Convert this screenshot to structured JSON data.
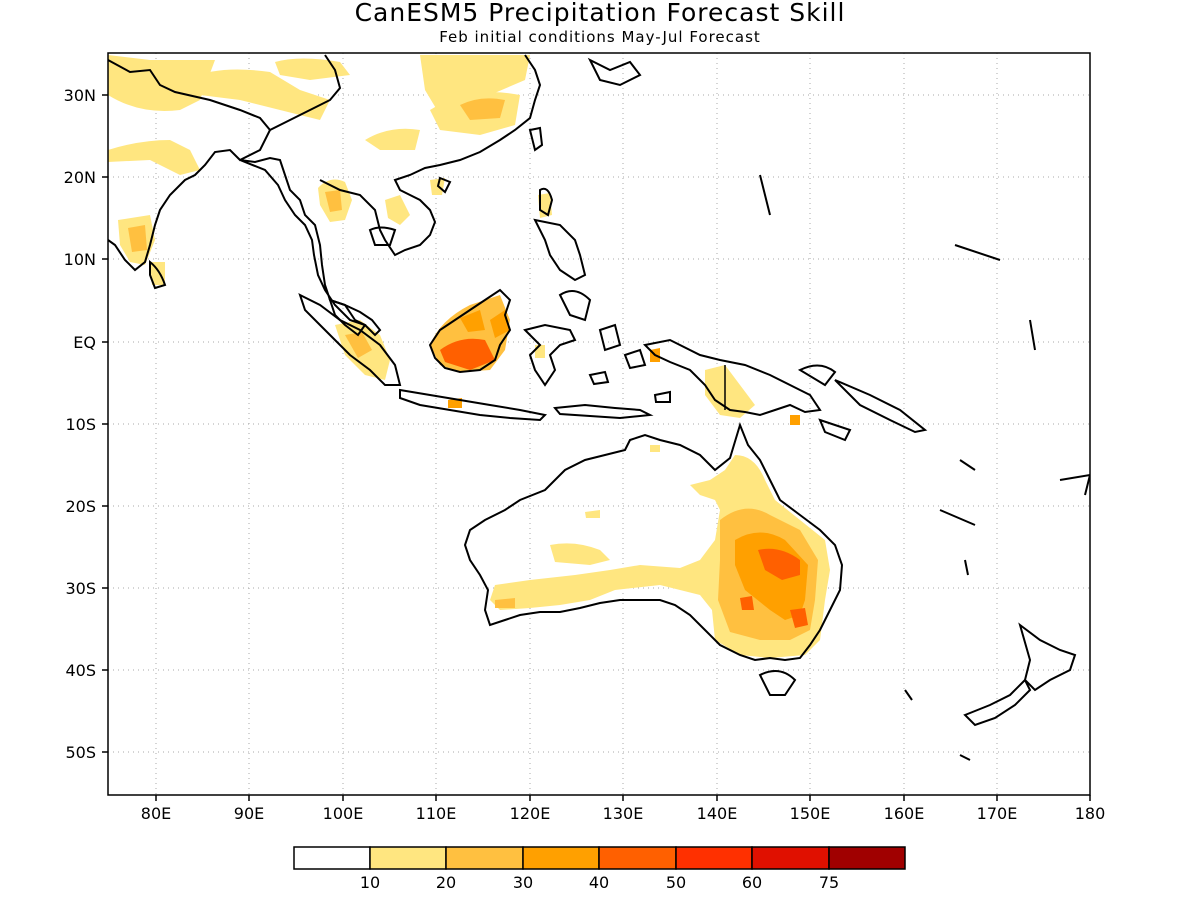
{
  "title": "CanESM5 Precipitation Forecast Skill",
  "subtitle": "Feb initial conditions  May-Jul Forecast",
  "map": {
    "lon_range": [
      75,
      180
    ],
    "lat_range": [
      -55,
      35
    ],
    "lon_ticks": [
      "80E",
      "90E",
      "100E",
      "110E",
      "120E",
      "130E",
      "140E",
      "150E",
      "160E",
      "170E",
      "180"
    ],
    "lat_ticks": [
      "30N",
      "20N",
      "10N",
      "EQ",
      "10S",
      "20S",
      "30S",
      "40S",
      "50S"
    ],
    "grid": "dotted"
  },
  "legend": {
    "labels": [
      "10",
      "20",
      "30",
      "40",
      "50",
      "60",
      "75"
    ],
    "colors": [
      "#ffffff",
      "#ffe680",
      "#ffc040",
      "#ffa000",
      "#ff6000",
      "#ff3000",
      "#e01000",
      "#a00000"
    ]
  }
}
